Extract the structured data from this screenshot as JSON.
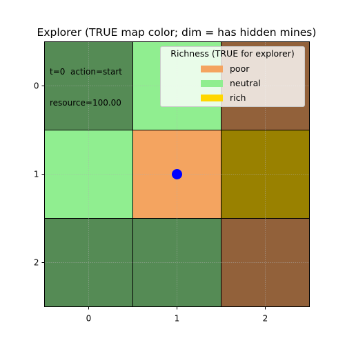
{
  "title": "Explorer (TRUE map color; dim = has hidden mines)",
  "annotation": {
    "line1": "t=0  action=start",
    "line2": "resource=100.00"
  },
  "grid": {
    "rows": 3,
    "cols": 3,
    "cells": [
      [
        "dim-neutral",
        "neutral",
        "dim-poor"
      ],
      [
        "neutral",
        "poor",
        "dim-rich"
      ],
      [
        "dim-neutral",
        "dim-neutral",
        "dim-poor"
      ]
    ],
    "x_ticks": [
      "0",
      "1",
      "2"
    ],
    "y_ticks": [
      "0",
      "1",
      "2"
    ]
  },
  "agent": {
    "row": 1,
    "col": 1,
    "color": "#0000ff"
  },
  "colors": {
    "poor": "#f4a460",
    "neutral": "#90ee90",
    "rich": "#ffd700",
    "dim-neutral": "#558b55",
    "dim-poor": "#92613a",
    "dim-rich": "#998100"
  },
  "legend": {
    "title": "Richness (TRUE for explorer)",
    "items": [
      {
        "label": "poor",
        "color": "#f4a460"
      },
      {
        "label": "neutral",
        "color": "#90ee90"
      },
      {
        "label": "rich",
        "color": "#ffd700"
      }
    ]
  }
}
